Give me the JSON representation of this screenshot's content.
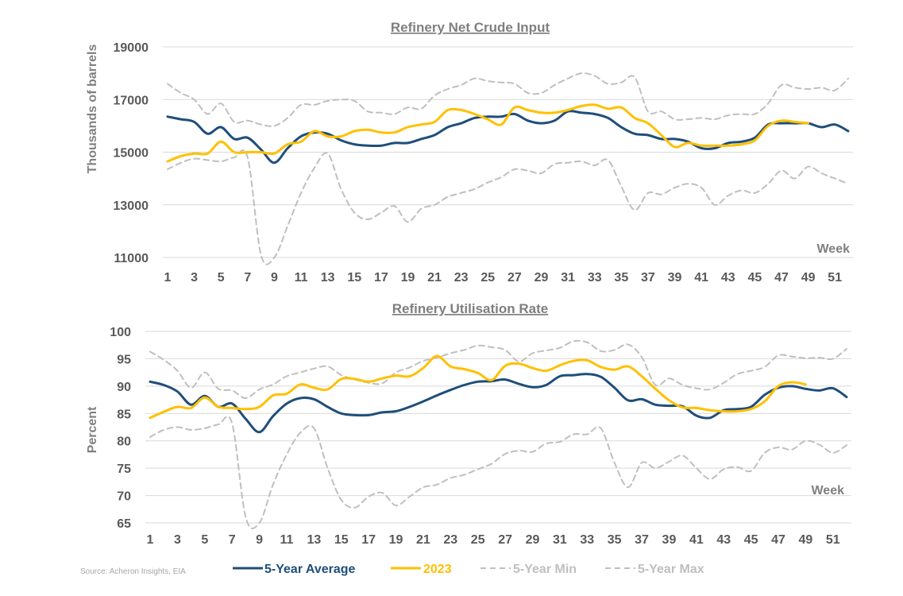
{
  "source": "Source: Acheron Insights, EIA",
  "legend": [
    {
      "label": "5-Year Average",
      "color": "#1f4e79",
      "style": "solid"
    },
    {
      "label": "2023",
      "color": "#ffc000",
      "style": "solid"
    },
    {
      "label": "5-Year Min",
      "color": "#bfbfbf",
      "style": "dashed"
    },
    {
      "label": "5-Year Max",
      "color": "#bfbfbf",
      "style": "dashed"
    }
  ],
  "chart_data": [
    {
      "type": "line",
      "title": "Refinery Net Crude Input",
      "ylabel": "Thousands of barrels",
      "xlabel": "Week",
      "ylim": [
        11000,
        19000
      ],
      "yticks": [
        11000,
        13000,
        15000,
        17000,
        19000
      ],
      "xlim": [
        1,
        52
      ],
      "xticks": [
        1,
        3,
        5,
        7,
        9,
        11,
        13,
        15,
        17,
        19,
        21,
        23,
        25,
        27,
        29,
        31,
        33,
        35,
        37,
        39,
        41,
        43,
        45,
        47,
        49,
        51
      ],
      "grid": true,
      "series": [
        {
          "name": "5-Year Average",
          "color": "#1f4e79",
          "values": [
            16350,
            16250,
            16150,
            15700,
            15950,
            15500,
            15550,
            15100,
            14600,
            15150,
            15600,
            15750,
            15700,
            15450,
            15300,
            15250,
            15250,
            15350,
            15350,
            15500,
            15650,
            15950,
            16100,
            16300,
            16350,
            16350,
            16450,
            16200,
            16100,
            16200,
            16550,
            16500,
            16450,
            16300,
            15950,
            15700,
            15650,
            15500,
            15500,
            15400,
            15150,
            15150,
            15350,
            15400,
            15550,
            16050,
            16100,
            16100,
            16100,
            15950,
            16050,
            15800
          ]
        },
        {
          "name": "2023",
          "color": "#ffc000",
          "values": [
            14650,
            14850,
            14950,
            14950,
            15400,
            15000,
            15000,
            15000,
            14950,
            15300,
            15400,
            15800,
            15600,
            15600,
            15800,
            15850,
            15750,
            15750,
            15950,
            16050,
            16150,
            16600,
            16600,
            16450,
            16250,
            16050,
            16700,
            16600,
            16500,
            16500,
            16600,
            16750,
            16800,
            16650,
            16700,
            16300,
            16100,
            15650,
            15200,
            15350,
            15250,
            15250,
            15250,
            15300,
            15450,
            16000,
            16200,
            16150,
            16100
          ]
        },
        {
          "name": "5-Year Min",
          "color": "#bfbfbf",
          "dashed": true,
          "values": [
            14350,
            14600,
            14750,
            14700,
            14650,
            14800,
            14800,
            11100,
            10700,
            12200,
            13450,
            14400,
            14950,
            13600,
            12700,
            12450,
            12700,
            12950,
            12350,
            12850,
            13000,
            13300,
            13450,
            13600,
            13850,
            14050,
            14350,
            14300,
            14200,
            14550,
            14600,
            14650,
            14500,
            14700,
            13700,
            12800,
            13450,
            13400,
            13650,
            13800,
            13650,
            13000,
            13350,
            13550,
            13450,
            13800,
            14300,
            14000,
            14450,
            14200,
            14000,
            13800
          ]
        },
        {
          "name": "5-Year Max",
          "color": "#bfbfbf",
          "dashed": true,
          "values": [
            17600,
            17250,
            17000,
            16450,
            16850,
            16150,
            16200,
            16050,
            16000,
            16300,
            16800,
            16800,
            16950,
            17000,
            16950,
            16550,
            16500,
            16450,
            16700,
            16650,
            17150,
            17400,
            17550,
            17800,
            17700,
            17650,
            17600,
            17250,
            17250,
            17550,
            17800,
            18000,
            17900,
            17600,
            17650,
            17850,
            16550,
            16550,
            16250,
            16250,
            16300,
            16250,
            16400,
            16450,
            16450,
            16850,
            17550,
            17450,
            17400,
            17450,
            17350,
            17800
          ]
        }
      ]
    },
    {
      "type": "line",
      "title": "Refinery Utilisation Rate",
      "ylabel": "Percent",
      "xlabel": "Week",
      "ylim": [
        65,
        100
      ],
      "yticks": [
        65,
        70,
        75,
        80,
        85,
        90,
        95,
        100
      ],
      "xlim": [
        1,
        52
      ],
      "xticks": [
        1,
        3,
        5,
        7,
        9,
        11,
        13,
        15,
        17,
        19,
        21,
        23,
        25,
        27,
        29,
        31,
        33,
        35,
        37,
        39,
        41,
        43,
        45,
        47,
        49,
        51
      ],
      "grid": true,
      "series": [
        {
          "name": "5-Year Average",
          "color": "#1f4e79",
          "values": [
            90.8,
            90.2,
            89.0,
            86.6,
            88.2,
            86.2,
            86.8,
            84.0,
            81.6,
            84.5,
            86.8,
            87.8,
            87.6,
            86.2,
            85.0,
            84.7,
            84.7,
            85.2,
            85.4,
            86.2,
            87.2,
            88.3,
            89.3,
            90.2,
            90.8,
            90.9,
            91.2,
            90.4,
            89.8,
            90.2,
            91.8,
            92.0,
            92.2,
            91.7,
            89.7,
            87.4,
            87.6,
            86.6,
            86.4,
            86.3,
            84.6,
            84.2,
            85.6,
            85.8,
            86.2,
            88.4,
            89.7,
            90.0,
            89.5,
            89.2,
            89.6,
            88.0
          ]
        },
        {
          "name": "2023",
          "color": "#ffc000",
          "values": [
            84.2,
            85.3,
            86.2,
            86.0,
            87.9,
            86.2,
            86.0,
            85.8,
            86.2,
            88.3,
            88.6,
            90.3,
            89.7,
            89.4,
            91.3,
            91.3,
            90.8,
            91.4,
            91.9,
            91.8,
            93.3,
            95.5,
            93.6,
            93.1,
            92.4,
            91.1,
            93.7,
            94.1,
            93.3,
            92.8,
            93.8,
            94.6,
            94.7,
            93.5,
            93.0,
            93.6,
            91.8,
            89.5,
            87.4,
            86.1,
            86.0,
            85.6,
            85.4,
            85.4,
            85.8,
            87.2,
            90.0,
            90.7,
            90.3
          ]
        },
        {
          "name": "5-Year Min",
          "color": "#bfbfbf",
          "dashed": true,
          "values": [
            80.7,
            82.0,
            82.5,
            82.0,
            82.3,
            83.0,
            83.2,
            66.0,
            64.5,
            72.0,
            77.5,
            81.5,
            82.3,
            75.0,
            69.2,
            67.8,
            69.8,
            70.5,
            68.2,
            69.8,
            71.5,
            72.0,
            73.2,
            73.8,
            74.8,
            75.8,
            77.6,
            78.2,
            78.0,
            79.5,
            79.8,
            81.2,
            81.2,
            82.3,
            76.0,
            71.5,
            76.0,
            75.0,
            76.2,
            77.3,
            75.0,
            73.0,
            74.8,
            75.2,
            74.5,
            77.8,
            78.8,
            78.4,
            80.0,
            79.3,
            77.8,
            79.2
          ]
        },
        {
          "name": "5-Year Max",
          "color": "#bfbfbf",
          "dashed": true,
          "values": [
            96.3,
            94.8,
            92.8,
            89.7,
            92.5,
            89.5,
            89.2,
            87.8,
            89.4,
            90.3,
            91.8,
            92.5,
            93.2,
            93.6,
            92.0,
            91.2,
            90.6,
            90.5,
            92.5,
            93.4,
            94.6,
            95.2,
            96.0,
            96.6,
            97.4,
            97.1,
            96.6,
            94.5,
            96.0,
            96.5,
            97.0,
            98.2,
            98.0,
            96.4,
            96.6,
            97.6,
            95.3,
            90.2,
            91.4,
            90.2,
            89.6,
            89.4,
            90.6,
            92.2,
            92.8,
            93.5,
            95.6,
            95.4,
            95.1,
            95.2,
            95.0,
            96.8
          ]
        }
      ]
    }
  ]
}
